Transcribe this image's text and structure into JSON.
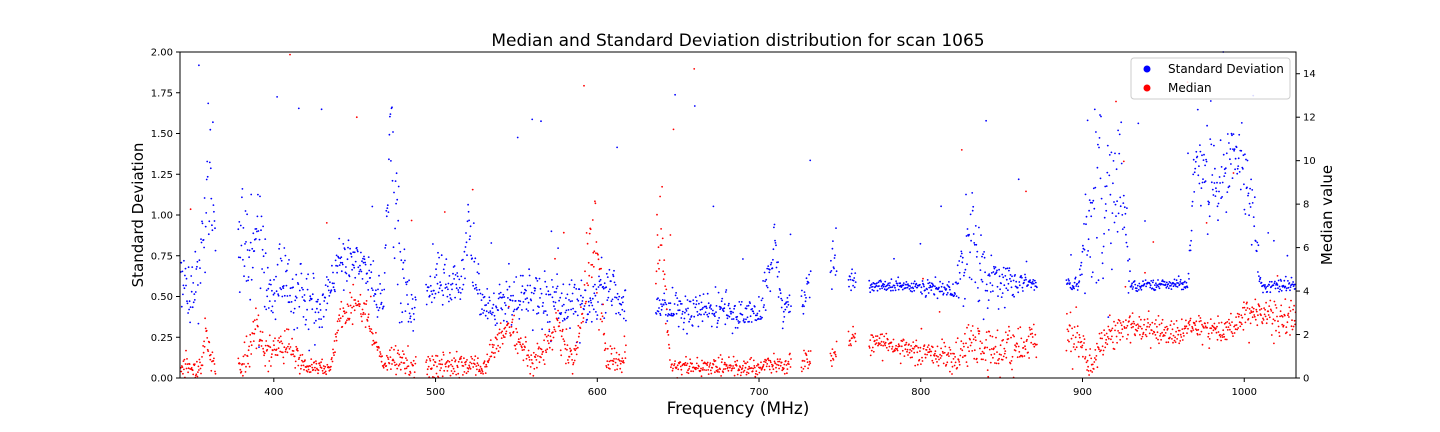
{
  "chart_data": {
    "type": "scatter",
    "title": "Median and Standard Deviation distribution for scan 1065",
    "xlabel": "Frequency (MHz)",
    "ylabel_left": "Standard Deviation",
    "ylabel_right": "Median value",
    "xlim": [
      342,
      1032
    ],
    "ylim_left": [
      0,
      2.0
    ],
    "ylim_right": [
      0,
      15
    ],
    "x_ticks": [
      400,
      500,
      600,
      700,
      800,
      900,
      1000
    ],
    "y_left_ticks": [
      "0.00",
      "0.25",
      "0.50",
      "0.75",
      "1.00",
      "1.25",
      "1.50",
      "1.75",
      "2.00"
    ],
    "y_right_ticks": [
      0,
      2,
      4,
      6,
      8,
      10,
      12,
      14
    ],
    "grid": false,
    "legend_position": "top-right",
    "series": [
      {
        "name": "Standard Deviation",
        "axis": "left",
        "color": "#0000ff",
        "profile": [
          [
            343,
            0.55,
            0.15
          ],
          [
            350,
            0.5,
            0.1
          ],
          [
            356,
            0.8,
            0.1
          ],
          [
            360,
            1.2,
            0.35
          ],
          [
            370,
            0.9,
            0.3
          ],
          [
            385,
            0.75,
            0.15
          ],
          [
            392,
            0.85,
            0.2
          ],
          [
            398,
            0.5,
            0.1
          ],
          [
            405,
            0.65,
            0.08
          ],
          [
            415,
            0.5,
            0.12
          ],
          [
            430,
            0.42,
            0.06
          ],
          [
            440,
            0.7,
            0.08
          ],
          [
            450,
            0.73,
            0.06
          ],
          [
            460,
            0.65,
            0.08
          ],
          [
            468,
            0.42,
            0.06
          ],
          [
            472,
            1.55,
            0.2
          ],
          [
            476,
            0.8,
            0.3
          ],
          [
            485,
            0.4,
            0.05
          ],
          [
            500,
            0.6,
            0.08
          ],
          [
            515,
            0.55,
            0.1
          ],
          [
            520,
            0.95,
            0.12
          ],
          [
            528,
            0.45,
            0.06
          ],
          [
            540,
            0.45,
            0.06
          ],
          [
            560,
            0.5,
            0.08
          ],
          [
            580,
            0.45,
            0.08
          ],
          [
            595,
            0.45,
            0.1
          ],
          [
            605,
            0.55,
            0.1
          ],
          [
            615,
            0.47,
            0.06
          ],
          [
            645,
            0.42,
            0.06
          ],
          [
            700,
            0.4,
            0.05
          ],
          [
            710,
            0.82,
            0.1
          ],
          [
            715,
            0.4,
            0.05
          ],
          [
            728,
            0.5,
            0.05
          ],
          [
            745,
            0.75,
            0.15
          ],
          [
            758,
            0.58,
            0.02
          ],
          [
            770,
            0.57,
            0.02
          ],
          [
            800,
            0.56,
            0.02
          ],
          [
            820,
            0.53,
            0.03
          ],
          [
            830,
            0.8,
            0.2
          ],
          [
            840,
            0.6,
            0.1
          ],
          [
            860,
            0.58,
            0.03
          ],
          [
            870,
            0.58,
            0.02
          ],
          [
            897,
            0.57,
            0.02
          ],
          [
            908,
            1.2,
            0.35
          ],
          [
            913,
            0.9,
            0.3
          ],
          [
            922,
            1.3,
            0.25
          ],
          [
            930,
            0.57,
            0.02
          ],
          [
            965,
            0.57,
            0.02
          ],
          [
            970,
            1.35,
            0.15
          ],
          [
            985,
            1.15,
            0.1
          ],
          [
            995,
            1.4,
            0.1
          ],
          [
            1005,
            1.0,
            0.12
          ],
          [
            1010,
            0.57,
            0.02
          ],
          [
            1030,
            0.57,
            0.02
          ]
        ]
      },
      {
        "name": "Median",
        "axis": "right",
        "color": "#ff0000",
        "profile": [
          [
            343,
            0.5,
            0.3
          ],
          [
            355,
            0.5,
            0.3
          ],
          [
            358,
            2.0,
            0.4
          ],
          [
            362,
            0.5,
            0.3
          ],
          [
            380,
            0.5,
            0.3
          ],
          [
            390,
            2.5,
            0.6
          ],
          [
            395,
            1.0,
            0.4
          ],
          [
            402,
            1.5,
            0.4
          ],
          [
            410,
            1.5,
            0.3
          ],
          [
            420,
            0.5,
            0.2
          ],
          [
            435,
            0.5,
            0.2
          ],
          [
            440,
            2.5,
            0.5
          ],
          [
            450,
            3.5,
            0.4
          ],
          [
            460,
            2.5,
            0.5
          ],
          [
            468,
            0.5,
            0.2
          ],
          [
            475,
            0.8,
            0.4
          ],
          [
            500,
            0.6,
            0.3
          ],
          [
            515,
            0.6,
            0.3
          ],
          [
            530,
            0.5,
            0.2
          ],
          [
            545,
            2.5,
            0.4
          ],
          [
            560,
            0.6,
            0.3
          ],
          [
            575,
            2.5,
            0.5
          ],
          [
            585,
            0.6,
            0.3
          ],
          [
            590,
            2.5,
            0.4
          ],
          [
            598,
            7.0,
            1.5
          ],
          [
            605,
            1.0,
            0.4
          ],
          [
            615,
            0.6,
            0.3
          ],
          [
            640,
            7.0,
            1.5
          ],
          [
            645,
            0.5,
            0.2
          ],
          [
            700,
            0.5,
            0.2
          ],
          [
            710,
            0.8,
            0.3
          ],
          [
            715,
            0.5,
            0.2
          ],
          [
            728,
            0.8,
            0.3
          ],
          [
            745,
            1.0,
            0.3
          ],
          [
            758,
            1.8,
            0.3
          ],
          [
            770,
            1.7,
            0.3
          ],
          [
            800,
            1.2,
            0.3
          ],
          [
            820,
            0.9,
            0.3
          ],
          [
            830,
            1.5,
            0.5
          ],
          [
            850,
            1.2,
            0.5
          ],
          [
            865,
            1.8,
            0.5
          ],
          [
            870,
            1.8,
            0.4
          ],
          [
            897,
            2.0,
            0.5
          ],
          [
            905,
            0.6,
            0.3
          ],
          [
            915,
            2.0,
            0.4
          ],
          [
            930,
            2.4,
            0.3
          ],
          [
            960,
            2.0,
            0.3
          ],
          [
            970,
            2.4,
            0.3
          ],
          [
            985,
            2.2,
            0.3
          ],
          [
            995,
            2.6,
            0.3
          ],
          [
            1005,
            3.0,
            0.4
          ],
          [
            1030,
            2.8,
            0.5
          ]
        ],
        "gaps_mhz": [
          [
            364,
            378
          ],
          [
            488,
            494
          ],
          [
            618,
            636
          ],
          [
            720,
            726
          ],
          [
            732,
            744
          ],
          [
            748,
            755
          ],
          [
            760,
            768
          ],
          [
            872,
            890
          ]
        ]
      }
    ]
  }
}
